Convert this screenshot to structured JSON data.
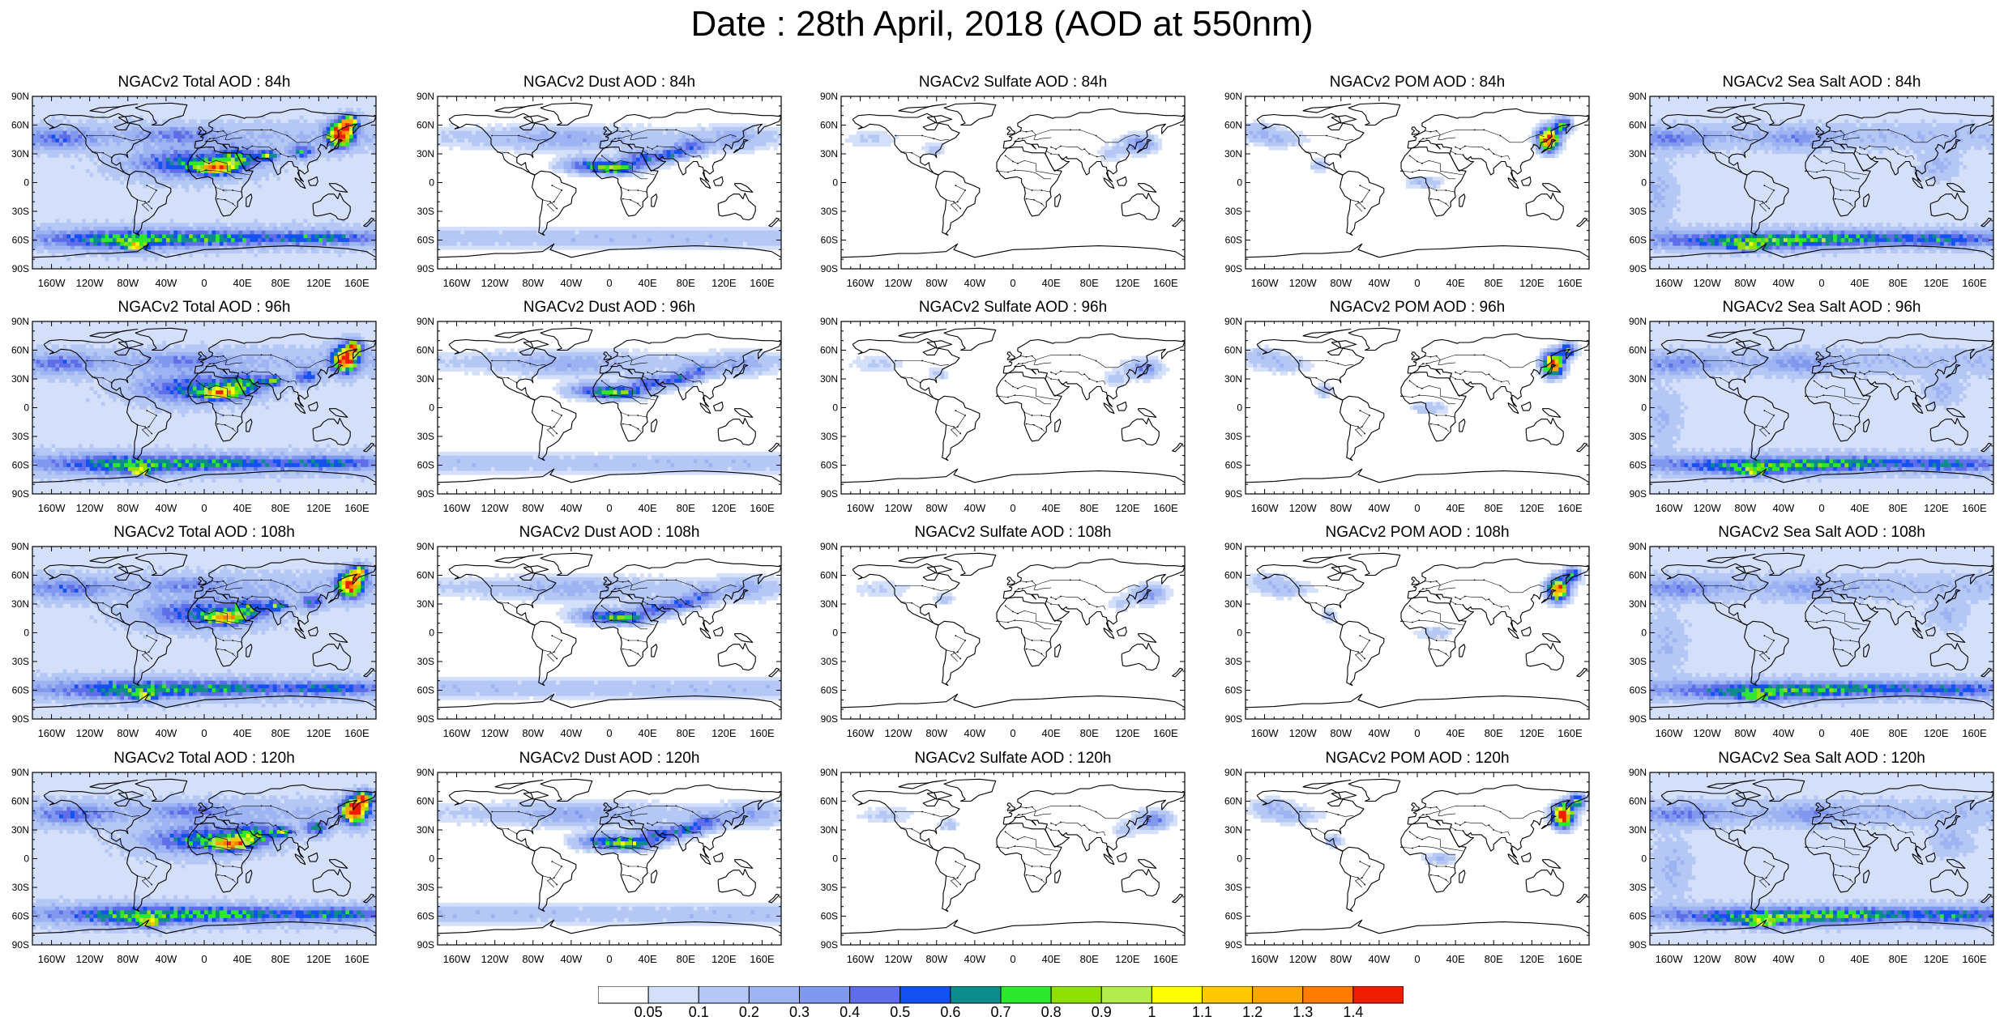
{
  "title": "Date : 28th April, 2018 (AOD at 550nm)",
  "lat_labels": [
    "90N",
    "60N",
    "30N",
    "0",
    "30S",
    "60S",
    "90S"
  ],
  "lon_labels": [
    "160W",
    "120W",
    "80W",
    "40W",
    "0",
    "40E",
    "80E",
    "120E",
    "160E"
  ],
  "forecast_hours": [
    "84h",
    "96h",
    "108h",
    "120h"
  ],
  "species": [
    {
      "key": "total",
      "name": "Total"
    },
    {
      "key": "dust",
      "name": "Dust"
    },
    {
      "key": "sulfate",
      "name": "Sulfate"
    },
    {
      "key": "pom",
      "name": "POM"
    },
    {
      "key": "seasalt",
      "name": "Sea Salt"
    }
  ],
  "panels": [
    {
      "title": "NGACv2 Total AOD : 84h",
      "species": "total",
      "hour": "84h"
    },
    {
      "title": "NGACv2 Dust AOD : 84h",
      "species": "dust",
      "hour": "84h"
    },
    {
      "title": "NGACv2 Sulfate AOD : 84h",
      "species": "sulfate",
      "hour": "84h"
    },
    {
      "title": "NGACv2 POM AOD : 84h",
      "species": "pom",
      "hour": "84h"
    },
    {
      "title": "NGACv2 Sea Salt AOD : 84h",
      "species": "seasalt",
      "hour": "84h"
    },
    {
      "title": "NGACv2 Total AOD : 96h",
      "species": "total",
      "hour": "96h"
    },
    {
      "title": "NGACv2 Dust AOD : 96h",
      "species": "dust",
      "hour": "96h"
    },
    {
      "title": "NGACv2 Sulfate AOD : 96h",
      "species": "sulfate",
      "hour": "96h"
    },
    {
      "title": "NGACv2 POM AOD : 96h",
      "species": "pom",
      "hour": "96h"
    },
    {
      "title": "NGACv2 Sea Salt AOD : 96h",
      "species": "seasalt",
      "hour": "96h"
    },
    {
      "title": "NGACv2 Total AOD : 108h",
      "species": "total",
      "hour": "108h"
    },
    {
      "title": "NGACv2 Dust AOD : 108h",
      "species": "dust",
      "hour": "108h"
    },
    {
      "title": "NGACv2 Sulfate AOD : 108h",
      "species": "sulfate",
      "hour": "108h"
    },
    {
      "title": "NGACv2 POM AOD : 108h",
      "species": "pom",
      "hour": "108h"
    },
    {
      "title": "NGACv2 Sea Salt AOD : 108h",
      "species": "seasalt",
      "hour": "108h"
    },
    {
      "title": "NGACv2 Total AOD : 120h",
      "species": "total",
      "hour": "120h"
    },
    {
      "title": "NGACv2 Dust AOD : 120h",
      "species": "dust",
      "hour": "120h"
    },
    {
      "title": "NGACv2 Sulfate AOD : 120h",
      "species": "sulfate",
      "hour": "120h"
    },
    {
      "title": "NGACv2 POM AOD : 120h",
      "species": "pom",
      "hour": "120h"
    },
    {
      "title": "NGACv2 Sea Salt  AOD : 120h",
      "species": "seasalt",
      "hour": "120h"
    }
  ],
  "colorbar": {
    "labels": [
      "0.05",
      "0.1",
      "0.2",
      "0.3",
      "0.4",
      "0.5",
      "0.6",
      "0.7",
      "0.8",
      "0.9",
      "1",
      "1.1",
      "1.2",
      "1.3",
      "1.4"
    ],
    "colors": [
      "#ffffff",
      "#d4e0fa",
      "#b5c8f5",
      "#9db3f2",
      "#8098ee",
      "#5f6ee8",
      "#1550f0",
      "#0e8c8c",
      "#2ee82e",
      "#8fe000",
      "#b4ec50",
      "#ffff00",
      "#ffc800",
      "#ffa500",
      "#ff7c00",
      "#f01e00"
    ]
  },
  "colors": {
    "coast": "#000000",
    "frame": "#000000"
  }
}
